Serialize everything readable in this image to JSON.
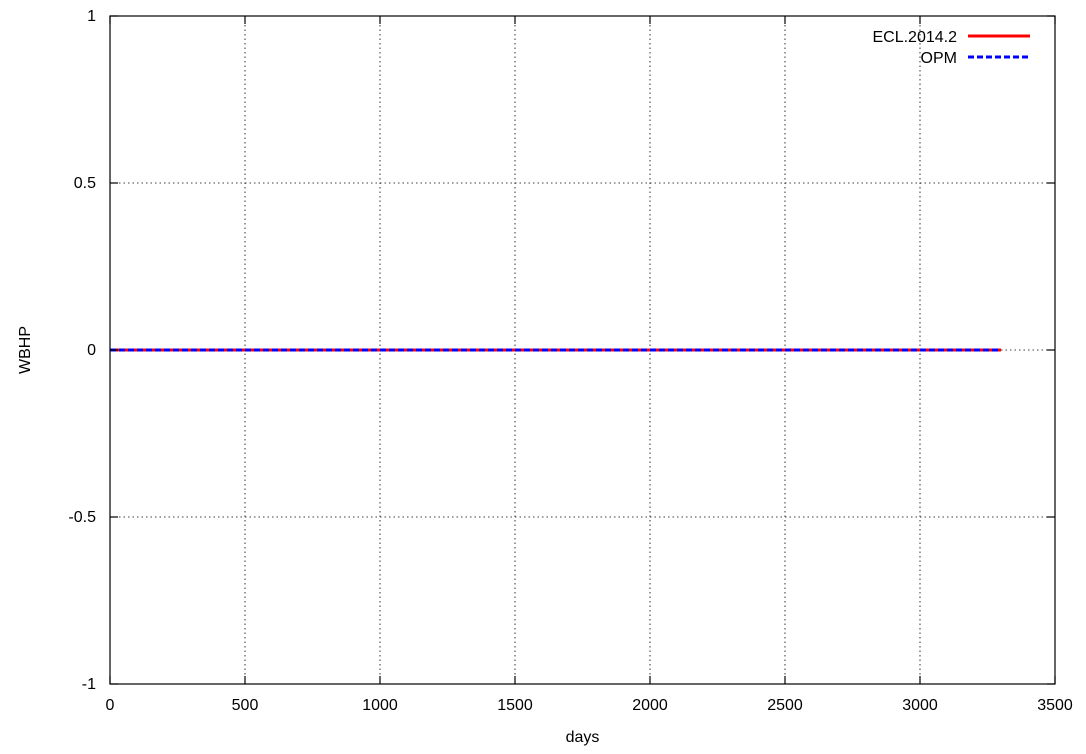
{
  "chart_data": {
    "type": "line",
    "title": "",
    "xlabel": "days",
    "ylabel": "WBHP",
    "xlim": [
      0,
      3500
    ],
    "ylim": [
      -1,
      1
    ],
    "xticks": [
      0,
      500,
      1000,
      1500,
      2000,
      2500,
      3000,
      3500
    ],
    "yticks": [
      -1,
      -0.5,
      0,
      0.5,
      1
    ],
    "xtick_labels": [
      "0",
      "500",
      "1000",
      "1500",
      "2000",
      "2500",
      "3000",
      "3500"
    ],
    "ytick_labels": [
      "-1",
      "-0.5",
      "0",
      "0.5",
      "1"
    ],
    "grid": true,
    "legend_position": "top-right",
    "series": [
      {
        "name": "ECL.2014.2",
        "color": "#ff0000",
        "style": "solid",
        "x": [
          0,
          500,
          1000,
          1500,
          2000,
          2500,
          3000,
          3300
        ],
        "y": [
          0,
          0,
          0,
          0,
          0,
          0,
          0,
          0
        ]
      },
      {
        "name": "OPM",
        "color": "#0000ff",
        "style": "dashed",
        "x": [
          0,
          500,
          1000,
          1500,
          2000,
          2500,
          3000,
          3300
        ],
        "y": [
          0,
          0,
          0,
          0,
          0,
          0,
          0,
          0
        ]
      }
    ]
  }
}
